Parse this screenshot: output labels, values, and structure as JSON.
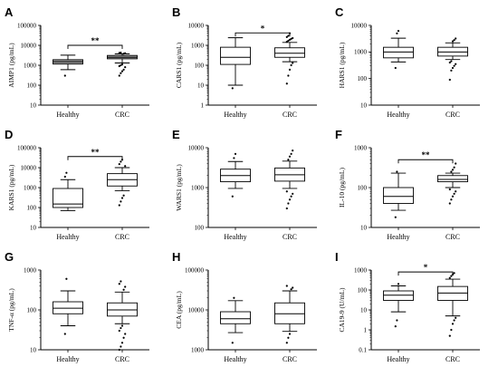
{
  "chart_data": [
    {
      "id": "A",
      "type": "boxplot",
      "ylabel": "AIMP1 (pg/mL)",
      "yscale": "log",
      "ylim": [
        10,
        100000
      ],
      "yticks": [
        {
          "v": 10,
          "label": "10"
        },
        {
          "v": 100,
          "label": "100"
        },
        {
          "v": 1000,
          "label": "1000"
        },
        {
          "v": 10000,
          "label": "10000"
        },
        {
          "v": 100000,
          "label": "100000"
        }
      ],
      "categories": [
        "Healthy",
        "CRC"
      ],
      "boxes": [
        {
          "name": "Healthy",
          "whisker_low": 600,
          "q1": 1150,
          "median": 1500,
          "q3": 1900,
          "whisker_high": 3200,
          "outliers": [
            300
          ],
          "fill": "#9e9e9e"
        },
        {
          "name": "CRC",
          "whisker_low": 1300,
          "q1": 2100,
          "median": 2500,
          "q3": 3100,
          "whisker_high": 3700,
          "outliers": [
            300,
            400,
            500,
            600,
            800,
            900,
            1000,
            1100,
            3800,
            4000,
            4200,
            4300
          ],
          "fill": "#9e9e9e"
        }
      ],
      "significance": {
        "label": "**",
        "y": 10000
      }
    },
    {
      "id": "B",
      "type": "boxplot",
      "ylabel": "CARS1 (pg/mL)",
      "yscale": "log",
      "ylim": [
        1,
        10000
      ],
      "yticks": [
        {
          "v": 1,
          "label": "1"
        },
        {
          "v": 10,
          "label": "10"
        },
        {
          "v": 100,
          "label": "100"
        },
        {
          "v": 1000,
          "label": "1000"
        },
        {
          "v": 10000,
          "label": "10000"
        }
      ],
      "categories": [
        "Healthy",
        "CRC"
      ],
      "boxes": [
        {
          "name": "Healthy",
          "whisker_low": 10,
          "q1": 110,
          "median": 250,
          "q3": 800,
          "whisker_high": 2400,
          "outliers": [
            7
          ],
          "fill": "#ffffff"
        },
        {
          "name": "CRC",
          "whisker_low": 150,
          "q1": 250,
          "median": 400,
          "q3": 750,
          "whisker_high": 1400,
          "outliers": [
            12,
            30,
            60,
            100,
            130,
            1500,
            1700,
            1900,
            2100,
            2300,
            2600,
            3000,
            4000
          ],
          "fill": "#ffffff"
        }
      ],
      "significance": {
        "label": "*",
        "y": 4200
      }
    },
    {
      "id": "C",
      "type": "boxplot",
      "ylabel": "HARS1 (pg/mL)",
      "yscale": "log",
      "ylim": [
        10,
        10000
      ],
      "yticks": [
        {
          "v": 10,
          "label": "10"
        },
        {
          "v": 100,
          "label": "100"
        },
        {
          "v": 1000,
          "label": "1000"
        },
        {
          "v": 10000,
          "label": "10000"
        }
      ],
      "categories": [
        "Healthy",
        "CRC"
      ],
      "boxes": [
        {
          "name": "Healthy",
          "whisker_low": 420,
          "q1": 600,
          "median": 1000,
          "q3": 1500,
          "whisker_high": 3300,
          "outliers": [
            250,
            5000,
            6200
          ],
          "fill": "#ffffff"
        },
        {
          "name": "CRC",
          "whisker_low": 520,
          "q1": 700,
          "median": 1000,
          "q3": 1500,
          "whisker_high": 2200,
          "outliers": [
            90,
            200,
            250,
            300,
            350,
            400,
            450,
            2500,
            2800,
            3200
          ],
          "fill": "#ffffff"
        }
      ],
      "significance": null
    },
    {
      "id": "D",
      "type": "boxplot",
      "ylabel": "KARS1 (pg/mL)",
      "yscale": "log",
      "ylim": [
        10,
        100000
      ],
      "yticks": [
        {
          "v": 10,
          "label": "10"
        },
        {
          "v": 100,
          "label": "100"
        },
        {
          "v": 1000,
          "label": "1000"
        },
        {
          "v": 10000,
          "label": "10000"
        },
        {
          "v": 100000,
          "label": "100000"
        }
      ],
      "categories": [
        "Healthy",
        "CRC"
      ],
      "boxes": [
        {
          "name": "Healthy",
          "whisker_low": 70,
          "q1": 100,
          "median": 150,
          "q3": 900,
          "whisker_high": 2500,
          "outliers": [
            3500,
            5500
          ],
          "fill": "#ffffff"
        },
        {
          "name": "CRC",
          "whisker_low": 700,
          "q1": 1200,
          "median": 2500,
          "q3": 5000,
          "whisker_high": 10000,
          "outliers": [
            130,
            200,
            300,
            400,
            12000,
            15000,
            20000,
            25000
          ],
          "fill": "#ffffff"
        }
      ],
      "significance": {
        "label": "**",
        "y": 36000
      }
    },
    {
      "id": "E",
      "type": "boxplot",
      "ylabel": "WARS1 (pg/mL)",
      "yscale": "log",
      "ylim": [
        100,
        10000
      ],
      "yticks": [
        {
          "v": 100,
          "label": "100"
        },
        {
          "v": 1000,
          "label": "1000"
        },
        {
          "v": 10000,
          "label": "10000"
        }
      ],
      "categories": [
        "Healthy",
        "CRC"
      ],
      "boxes": [
        {
          "name": "Healthy",
          "whisker_low": 950,
          "q1": 1400,
          "median": 2000,
          "q3": 2900,
          "whisker_high": 4500,
          "outliers": [
            600,
            5500,
            7000
          ],
          "fill": "#ffffff"
        },
        {
          "name": "CRC",
          "whisker_low": 950,
          "q1": 1450,
          "median": 2100,
          "q3": 3100,
          "whisker_high": 4600,
          "outliers": [
            300,
            400,
            500,
            600,
            700,
            800,
            5000,
            6000,
            7000,
            8500
          ],
          "fill": "#ffffff"
        }
      ],
      "significance": null
    },
    {
      "id": "F",
      "type": "boxplot",
      "ylabel": "IL-10 (pg/mL)",
      "yscale": "log",
      "ylim": [
        10,
        1000
      ],
      "yticks": [
        {
          "v": 10,
          "label": "10"
        },
        {
          "v": 100,
          "label": "100"
        },
        {
          "v": 1000,
          "label": "1000"
        }
      ],
      "categories": [
        "Healthy",
        "CRC"
      ],
      "boxes": [
        {
          "name": "Healthy",
          "whisker_low": 27,
          "q1": 40,
          "median": 60,
          "q3": 100,
          "whisker_high": 230,
          "outliers": [
            18,
            250
          ],
          "fill": "#ffffff"
        },
        {
          "name": "CRC",
          "whisker_low": 100,
          "q1": 140,
          "median": 160,
          "q3": 200,
          "whisker_high": 230,
          "outliers": [
            40,
            50,
            60,
            70,
            80,
            90,
            250,
            280,
            320,
            400
          ],
          "fill": "#ffffff"
        }
      ],
      "significance": {
        "label": "**",
        "y": 500
      }
    },
    {
      "id": "G",
      "type": "boxplot",
      "ylabel": "TNF-α (pg/mL)",
      "yscale": "log",
      "ylim": [
        10,
        1000
      ],
      "yticks": [
        {
          "v": 10,
          "label": "10"
        },
        {
          "v": 100,
          "label": "100"
        },
        {
          "v": 1000,
          "label": "1000"
        }
      ],
      "categories": [
        "Healthy",
        "CRC"
      ],
      "boxes": [
        {
          "name": "Healthy",
          "whisker_low": 40,
          "q1": 80,
          "median": 110,
          "q3": 160,
          "whisker_high": 300,
          "outliers": [
            25,
            600
          ],
          "fill": "#ffffff"
        },
        {
          "name": "CRC",
          "whisker_low": 45,
          "q1": 70,
          "median": 100,
          "q3": 150,
          "whisker_high": 280,
          "outliers": [
            10,
            12,
            15,
            20,
            25,
            30,
            35,
            40,
            320,
            380,
            450,
            520
          ],
          "fill": "#ffffff"
        }
      ],
      "significance": null
    },
    {
      "id": "H",
      "type": "boxplot",
      "ylabel": "CEA (pg/mL)",
      "yscale": "log",
      "ylim": [
        1000,
        100000
      ],
      "yticks": [
        {
          "v": 1000,
          "label": "1000"
        },
        {
          "v": 10000,
          "label": "10000"
        },
        {
          "v": 100000,
          "label": "100000"
        }
      ],
      "categories": [
        "Healthy",
        "CRC"
      ],
      "boxes": [
        {
          "name": "Healthy",
          "whisker_low": 2700,
          "q1": 4500,
          "median": 6000,
          "q3": 9000,
          "whisker_high": 17000,
          "outliers": [
            1500,
            20000
          ],
          "fill": "#ffffff"
        },
        {
          "name": "CRC",
          "whisker_low": 2900,
          "q1": 4500,
          "median": 8000,
          "q3": 15000,
          "whisker_high": 30000,
          "outliers": [
            1500,
            2000,
            2500,
            33000,
            36000,
            40000
          ],
          "fill": "#ffffff"
        }
      ],
      "significance": null
    },
    {
      "id": "I",
      "type": "boxplot",
      "ylabel": "CA19-9 (U/mL)",
      "yscale": "log",
      "ylim": [
        0.1,
        1000
      ],
      "yticks": [
        {
          "v": 0.1,
          "label": "0.1"
        },
        {
          "v": 1,
          "label": "1"
        },
        {
          "v": 10,
          "label": "10"
        },
        {
          "v": 100,
          "label": "100"
        },
        {
          "v": 1000,
          "label": "1000"
        }
      ],
      "categories": [
        "Healthy",
        "CRC"
      ],
      "boxes": [
        {
          "name": "Healthy",
          "whisker_low": 8,
          "q1": 30,
          "median": 55,
          "q3": 90,
          "whisker_high": 160,
          "outliers": [
            1.5,
            3,
            200
          ],
          "fill": "#ffffff"
        },
        {
          "name": "CRC",
          "whisker_low": 5,
          "q1": 30,
          "median": 70,
          "q3": 150,
          "whisker_high": 350,
          "outliers": [
            0.5,
            1,
            2,
            3,
            4,
            400,
            500,
            600,
            700
          ],
          "fill": "#ffffff"
        }
      ],
      "significance": {
        "label": "*",
        "y": 800
      }
    }
  ]
}
